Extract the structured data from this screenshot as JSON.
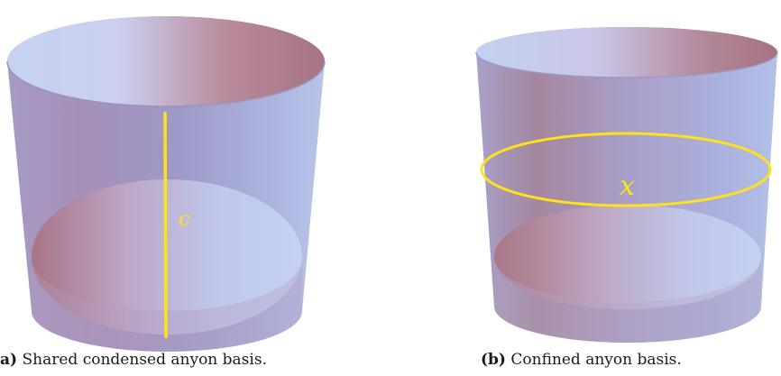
{
  "figures": [
    {
      "tag": "(a)",
      "caption": "Shared condensed anyon basis.",
      "label": "c"
    },
    {
      "tag": "(b)",
      "caption": "Confined anyon basis.",
      "label": "x"
    }
  ],
  "colors": {
    "surface_blue": "#b8c8ec",
    "surface_rose": "#a87282",
    "surface_lavender": "#a99ec8",
    "highlight_yellow": "#ffe21a"
  }
}
